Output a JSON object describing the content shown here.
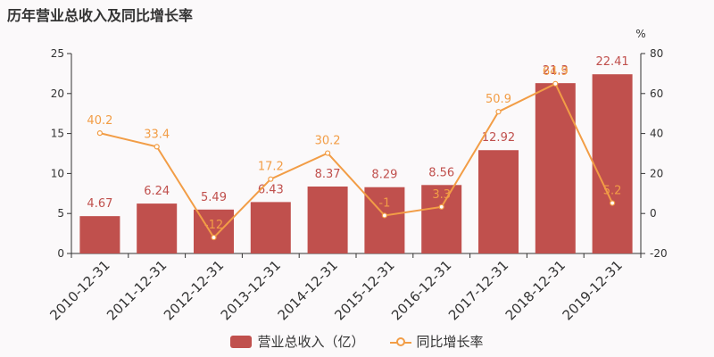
{
  "chart_data": {
    "type": "bar+line",
    "title": "历年营业总收入及同比增长率",
    "categories": [
      "2010-12-31",
      "2011-12-31",
      "2012-12-31",
      "2013-12-31",
      "2014-12-31",
      "2015-12-31",
      "2016-12-31",
      "2017-12-31",
      "2018-12-31",
      "2019-12-31"
    ],
    "series": [
      {
        "name": "营业总收入（亿）",
        "type": "bar",
        "axis": "left",
        "color": "#c0504d",
        "values": [
          4.67,
          6.24,
          5.49,
          6.43,
          8.37,
          8.29,
          8.56,
          12.92,
          21.3,
          22.41
        ],
        "labels": [
          "4.67",
          "6.24",
          "5.49",
          "6.43",
          "8.37",
          "8.29",
          "8.56",
          "12.92",
          "21.3",
          "22.41"
        ]
      },
      {
        "name": "同比增长率",
        "type": "line",
        "axis": "right",
        "color": "#f29d46",
        "values": [
          40.2,
          33.4,
          -12,
          17.2,
          30.2,
          -1,
          3.3,
          50.9,
          64.9,
          5.2
        ],
        "labels": [
          "40.2",
          "33.4",
          "-12",
          "17.2",
          "30.2",
          "-1",
          "3.3",
          "50.9",
          "64.9",
          "5.2"
        ]
      }
    ],
    "y_left": {
      "range": [
        0,
        25
      ],
      "ticks": [
        0,
        5,
        10,
        15,
        20,
        25
      ]
    },
    "y_right": {
      "range": [
        -20,
        80
      ],
      "ticks": [
        -20,
        0,
        20,
        40,
        60,
        80
      ],
      "unit": "%"
    },
    "legend_position": "bottom"
  }
}
